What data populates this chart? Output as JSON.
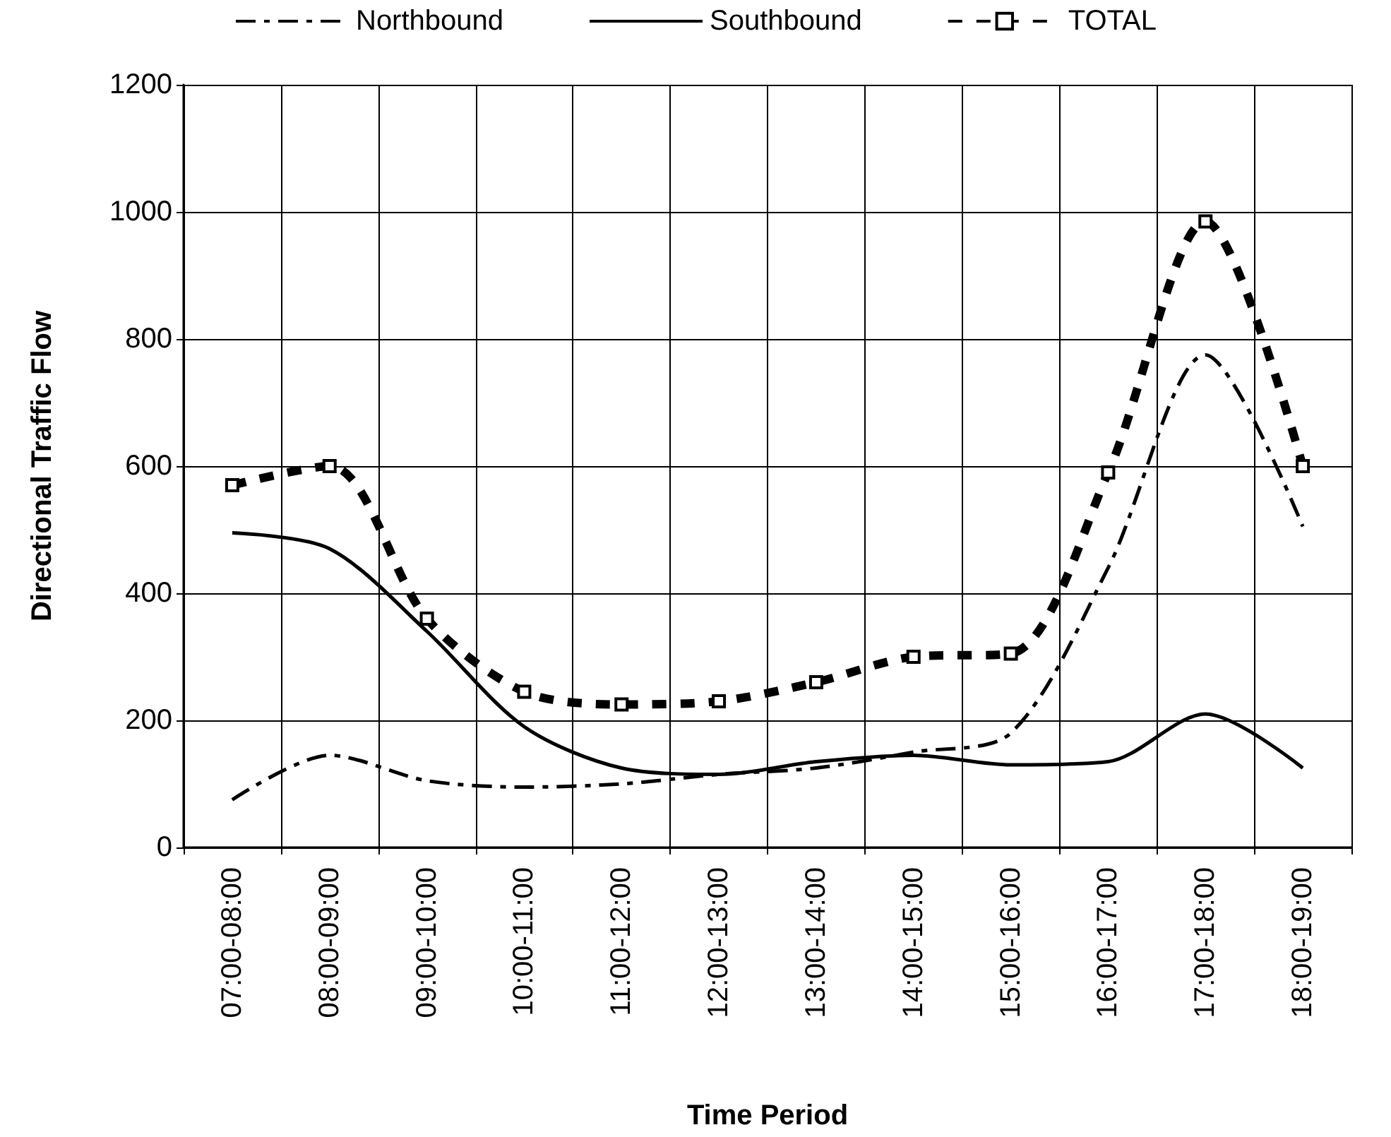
{
  "chart_data": {
    "type": "line",
    "xlabel": "Time Period",
    "ylabel": "Directional Traffic Flow",
    "categories": [
      "07:00-08:00",
      "08:00-09:00",
      "09:00-10:00",
      "10:00-11:00",
      "11:00-12:00",
      "12:00-13:00",
      "13:00-14:00",
      "14:00-15:00",
      "15:00-16:00",
      "16:00-17:00",
      "17:00-18:00",
      "18:00-19:00"
    ],
    "series": [
      {
        "name": "Northbound",
        "color": "#000000",
        "line_style": "dashed",
        "marker": "none",
        "values": [
          75,
          145,
          105,
          95,
          100,
          115,
          125,
          150,
          180,
          440,
          775,
          505
        ]
      },
      {
        "name": "Southbound",
        "color": "#000000",
        "line_style": "solid",
        "marker": "none",
        "values": [
          495,
          470,
          340,
          190,
          125,
          115,
          135,
          145,
          130,
          135,
          210,
          125
        ]
      },
      {
        "name": "TOTAL",
        "color": "#000000",
        "line_style": "dashed",
        "marker": "square",
        "values": [
          570,
          600,
          360,
          245,
          225,
          230,
          260,
          300,
          305,
          590,
          985,
          600
        ]
      }
    ],
    "ylim": [
      0,
      1200
    ],
    "yticks": [
      0,
      200,
      400,
      600,
      800,
      1000,
      1200
    ],
    "grid": true,
    "legend": "top"
  }
}
